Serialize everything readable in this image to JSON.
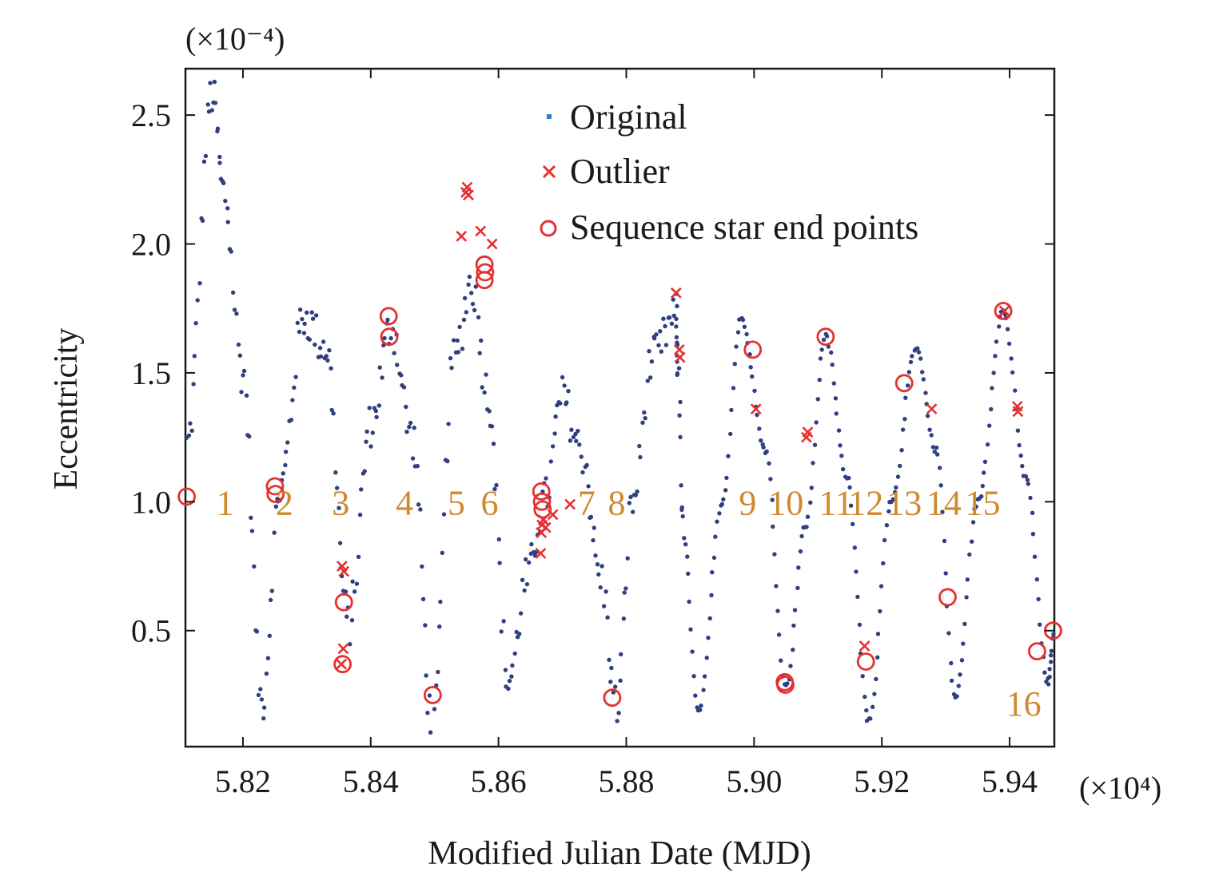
{
  "chart_data": {
    "type": "scatter",
    "title": "",
    "xlabel": "Modified Julian Date (MJD)",
    "ylabel": "Eccentricity",
    "x_multiplier_label": "(×10⁴)",
    "y_multiplier_label": "(×10⁻⁴)",
    "xlim": [
      5.811,
      5.947
    ],
    "ylim": [
      0.05,
      2.68
    ],
    "x_ticks": [
      5.82,
      5.84,
      5.86,
      5.88,
      5.9,
      5.92,
      5.94
    ],
    "x_tick_labels": [
      "5.82",
      "5.84",
      "5.86",
      "5.88",
      "5.90",
      "5.92",
      "5.94"
    ],
    "y_ticks": [
      0.5,
      1.0,
      1.5,
      2.0,
      2.5
    ],
    "y_tick_labels": [
      "0.5",
      "1.0",
      "1.5",
      "2.0",
      "2.5"
    ],
    "grid": false,
    "legend": {
      "placement": "top-center",
      "entries": [
        {
          "name": "Original",
          "marker": "dot",
          "color": "#2f3f7f"
        },
        {
          "name": "Outlier",
          "marker": "x",
          "color": "#e53030"
        },
        {
          "name": "Sequence star end points",
          "marker": "circle",
          "color": "#e53030"
        }
      ]
    },
    "series": [
      {
        "name": "Original",
        "marker": "dot",
        "color": "#2f3f7f",
        "curve_keypoints": {
          "x": [
            5.8112,
            5.8152,
            5.817,
            5.82,
            5.8229,
            5.8258,
            5.8295,
            5.833,
            5.8365,
            5.84,
            5.8432,
            5.8465,
            5.8497,
            5.853,
            5.8558,
            5.8585,
            5.8615,
            5.8645,
            5.8672,
            5.87,
            5.873,
            5.876,
            5.8785,
            5.881,
            5.884,
            5.8878,
            5.888,
            5.889,
            5.8913,
            5.895,
            5.898,
            5.9018,
            5.905,
            5.908,
            5.9112,
            5.9145,
            5.918,
            5.9215,
            5.9253,
            5.9285,
            5.9315,
            5.935,
            5.939,
            5.9425,
            5.946,
            5.947
          ],
          "y": [
            1.22,
            2.58,
            2.2,
            1.5,
            0.22,
            1.05,
            1.72,
            1.6,
            0.52,
            1.3,
            1.68,
            1.25,
            0.12,
            1.55,
            1.85,
            1.4,
            0.3,
            0.7,
            1.0,
            1.4,
            1.2,
            0.7,
            0.2,
            1.0,
            1.55,
            1.72,
            1.55,
            0.85,
            0.18,
            1.0,
            1.71,
            1.2,
            0.28,
            0.9,
            1.64,
            1.1,
            0.15,
            1.0,
            1.6,
            1.2,
            0.24,
            1.0,
            1.74,
            1.1,
            0.3,
            0.5
          ]
        }
      },
      {
        "name": "Outlier",
        "marker": "x",
        "color": "#e53030",
        "x": [
          5.8355,
          5.8358,
          5.8357,
          5.8354,
          5.8542,
          5.8549,
          5.8551,
          5.8553,
          5.8572,
          5.859,
          5.8666,
          5.8667,
          5.8668,
          5.867,
          5.8674,
          5.8685,
          5.8712,
          5.8878,
          5.8883,
          5.8884,
          5.9003,
          5.9082,
          5.9084,
          5.9173,
          5.9278,
          5.9392,
          5.9412,
          5.9413
        ],
        "y": [
          0.75,
          0.73,
          0.43,
          0.37,
          2.03,
          2.2,
          2.22,
          2.19,
          2.05,
          2.0,
          0.8,
          0.88,
          0.91,
          0.93,
          0.9,
          0.95,
          0.99,
          1.81,
          1.59,
          1.56,
          1.36,
          1.25,
          1.27,
          0.44,
          1.36,
          1.74,
          1.37,
          1.35
        ]
      },
      {
        "name": "Sequence star end points",
        "marker": "circle",
        "color": "#e53030",
        "x": [
          5.8112,
          5.825,
          5.8251,
          5.8358,
          5.8356,
          5.8428,
          5.8429,
          5.8497,
          5.8578,
          5.8579,
          5.8578,
          5.8667,
          5.8668,
          5.8669,
          5.8778,
          5.8998,
          5.9048,
          5.9049,
          5.9112,
          5.9175,
          5.9235,
          5.9303,
          5.939,
          5.9443,
          5.9468
        ],
        "y": [
          1.02,
          1.06,
          1.03,
          0.61,
          0.37,
          1.72,
          1.64,
          0.25,
          1.92,
          1.89,
          1.86,
          1.04,
          1.0,
          0.97,
          0.24,
          1.59,
          0.3,
          0.29,
          1.64,
          0.38,
          1.46,
          0.63,
          1.74,
          0.42,
          0.5
        ]
      }
    ],
    "segment_labels": [
      {
        "text": "1",
        "x": 5.8172,
        "y": 1.0
      },
      {
        "text": "2",
        "x": 5.8265,
        "y": 1.0
      },
      {
        "text": "3",
        "x": 5.8353,
        "y": 1.0
      },
      {
        "text": "4",
        "x": 5.8453,
        "y": 1.0
      },
      {
        "text": "5",
        "x": 5.8534,
        "y": 1.0
      },
      {
        "text": "6",
        "x": 5.8586,
        "y": 1.0
      },
      {
        "text": "7",
        "x": 5.8738,
        "y": 1.0
      },
      {
        "text": "8",
        "x": 5.8785,
        "y": 1.0
      },
      {
        "text": "9",
        "x": 5.899,
        "y": 1.0
      },
      {
        "text": "10",
        "x": 5.905,
        "y": 1.0
      },
      {
        "text": "11",
        "x": 5.9128,
        "y": 1.0
      },
      {
        "text": "12",
        "x": 5.9175,
        "y": 1.0
      },
      {
        "text": "13",
        "x": 5.9235,
        "y": 1.0
      },
      {
        "text": "14",
        "x": 5.9297,
        "y": 1.0
      },
      {
        "text": "15",
        "x": 5.9358,
        "y": 1.0
      },
      {
        "text": "16",
        "x": 5.9422,
        "y": 0.22
      }
    ]
  }
}
